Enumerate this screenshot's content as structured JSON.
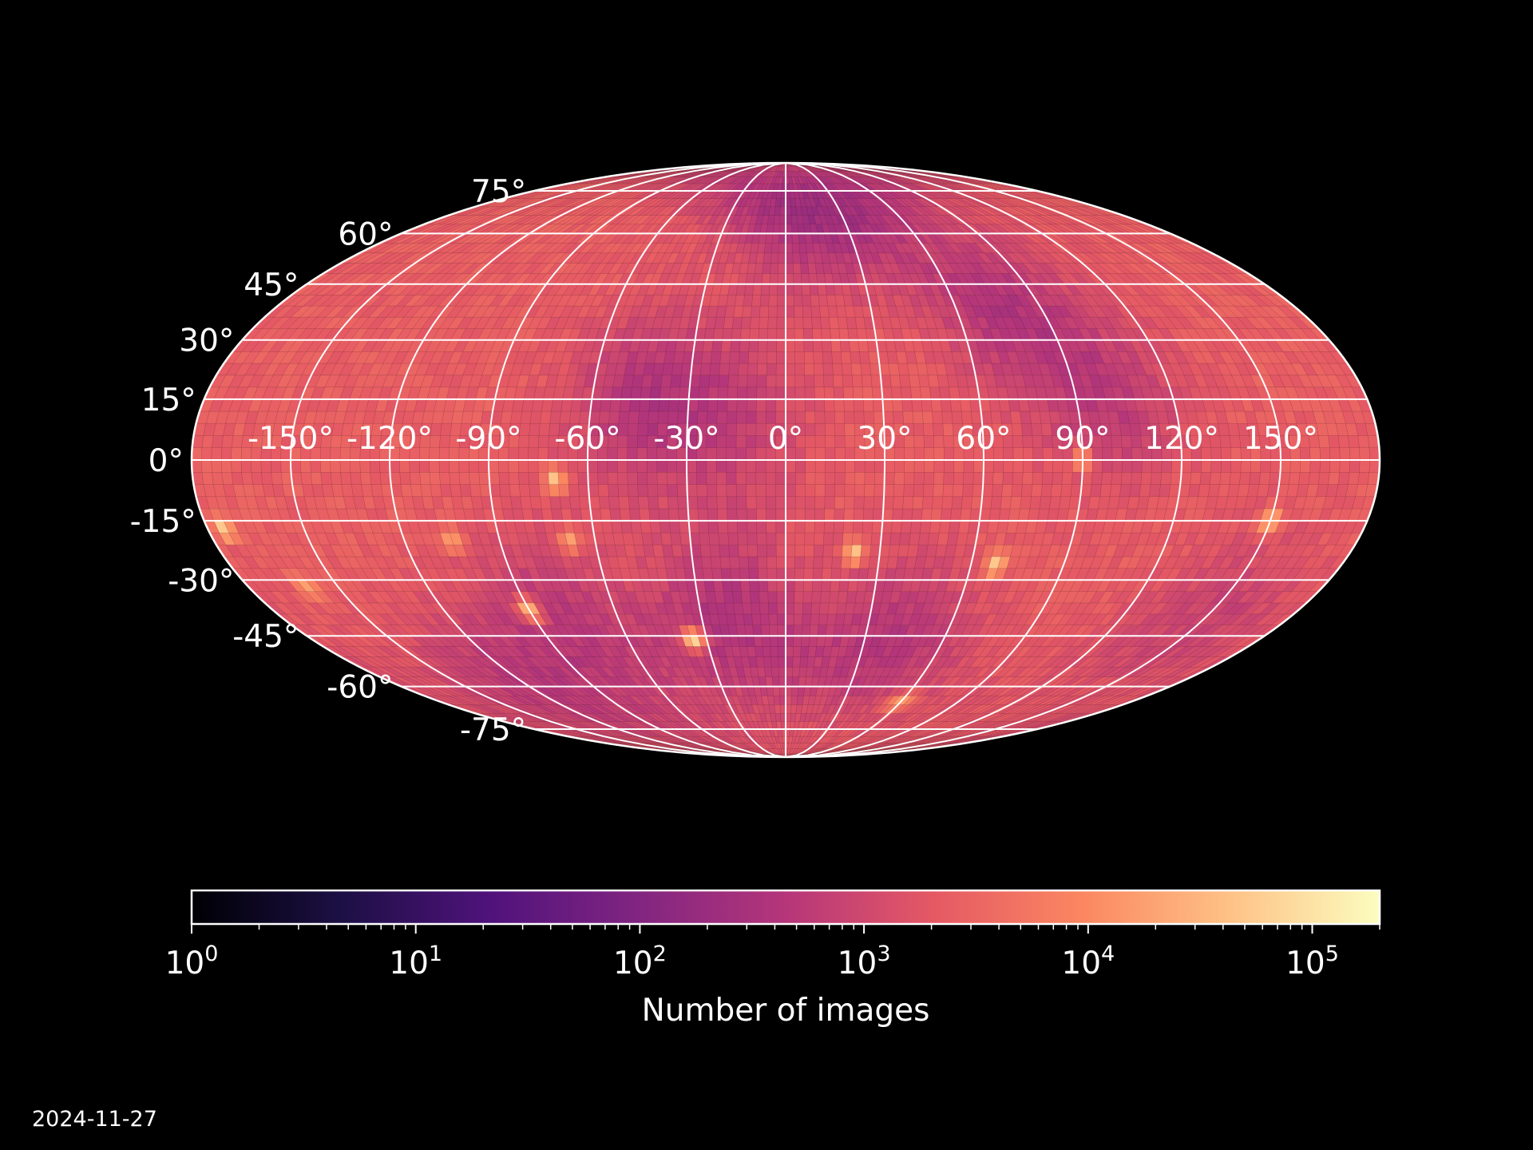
{
  "chart_data": {
    "type": "heatmap",
    "projection": "mollweide",
    "background_color": "#000000",
    "grid": true,
    "grid_color": "#ffffff",
    "colormap": "magma",
    "colormap_stops": [
      "#000004",
      "#1c1044",
      "#4f127b",
      "#812581",
      "#b5367a",
      "#e55964",
      "#fb8761",
      "#fec287",
      "#fcfdbf"
    ],
    "colorbar": {
      "orientation": "horizontal",
      "scale": "log",
      "range": [
        1,
        200000
      ],
      "ticks": [
        {
          "value": 1,
          "base": "10",
          "exp": "0"
        },
        {
          "value": 10,
          "base": "10",
          "exp": "1"
        },
        {
          "value": 100,
          "base": "10",
          "exp": "2"
        },
        {
          "value": 1000,
          "base": "10",
          "exp": "3"
        },
        {
          "value": 10000,
          "base": "10",
          "exp": "4"
        },
        {
          "value": 100000,
          "base": "10",
          "exp": "5"
        }
      ],
      "label": "Number of images"
    },
    "latitude_ticks": [
      {
        "value": 75,
        "label": "75°"
      },
      {
        "value": 60,
        "label": "60°"
      },
      {
        "value": 45,
        "label": "45°"
      },
      {
        "value": 30,
        "label": "30°"
      },
      {
        "value": 15,
        "label": "15°"
      },
      {
        "value": 0,
        "label": "0°"
      },
      {
        "value": -15,
        "label": "-15°"
      },
      {
        "value": -30,
        "label": "-30°"
      },
      {
        "value": -45,
        "label": "-45°"
      },
      {
        "value": -60,
        "label": "-60°"
      },
      {
        "value": -75,
        "label": "-75°"
      }
    ],
    "longitude_ticks": [
      {
        "value": -150,
        "label": "-150°"
      },
      {
        "value": -120,
        "label": "-120°"
      },
      {
        "value": -90,
        "label": "-90°"
      },
      {
        "value": -60,
        "label": "-60°"
      },
      {
        "value": -30,
        "label": "-30°"
      },
      {
        "value": 0,
        "label": "0°"
      },
      {
        "value": 30,
        "label": "30°"
      },
      {
        "value": 60,
        "label": "60°"
      },
      {
        "value": 90,
        "label": "90°"
      },
      {
        "value": 120,
        "label": "120°"
      },
      {
        "value": 150,
        "label": "150°"
      }
    ],
    "base_count": 2500,
    "regions": [
      {
        "lon": 15,
        "lat": 68,
        "value": 250
      },
      {
        "lon": -45,
        "lat": 15,
        "value": 500
      },
      {
        "lon": -15,
        "lat": 10,
        "value": 800
      },
      {
        "lon": 75,
        "lat": 40,
        "value": 500
      },
      {
        "lon": 100,
        "lat": 15,
        "value": 600
      },
      {
        "lon": -20,
        "lat": -40,
        "value": 400
      },
      {
        "lon": -80,
        "lat": -40,
        "value": 600
      },
      {
        "lon": 40,
        "lat": -45,
        "value": 500
      },
      {
        "lon": -120,
        "lat": -60,
        "value": 700
      },
      {
        "lon": 150,
        "lat": -40,
        "value": 800
      }
    ],
    "hotspots": [
      {
        "lon": -70,
        "lat": -5,
        "value": 50000
      },
      {
        "lon": -175,
        "lat": -17,
        "value": 60000
      },
      {
        "lon": -90,
        "lat": -38,
        "value": 40000
      },
      {
        "lon": -35,
        "lat": -46,
        "value": 80000
      },
      {
        "lon": 22,
        "lat": -23,
        "value": 50000
      },
      {
        "lon": 68,
        "lat": -26,
        "value": 60000
      },
      {
        "lon": 150,
        "lat": -15,
        "value": 40000
      },
      {
        "lon": -68,
        "lat": -20,
        "value": 20000
      },
      {
        "lon": -105,
        "lat": -20,
        "value": 20000
      },
      {
        "lon": -160,
        "lat": -32,
        "value": 20000
      },
      {
        "lon": 90,
        "lat": 0,
        "value": 15000
      },
      {
        "lon": 60,
        "lat": -65,
        "value": 20000
      }
    ]
  },
  "footer": {
    "date": "2024-11-27"
  }
}
